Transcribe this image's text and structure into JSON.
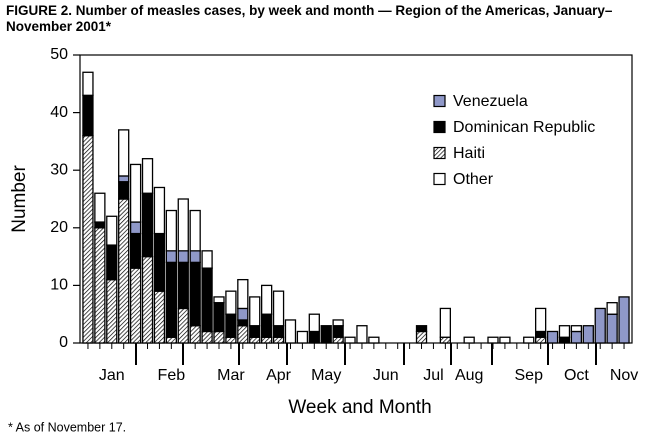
{
  "chart_data": {
    "type": "bar",
    "stacked": true,
    "title": "FIGURE 2. Number of measles cases, by week and month — Region of the Americas, January–November 2001*",
    "x_label": "Week and Month",
    "y_label": "Number",
    "footnote": "* As of November 17.",
    "categories": [
      null,
      null,
      "Jan",
      null,
      null,
      null,
      null,
      "Feb",
      null,
      null,
      null,
      null,
      "Mar",
      null,
      null,
      null,
      "Apr",
      null,
      null,
      null,
      "May",
      null,
      null,
      null,
      null,
      "Jun",
      null,
      null,
      null,
      "Jul",
      null,
      null,
      "Aug",
      null,
      null,
      null,
      null,
      "Sep",
      null,
      null,
      null,
      "Oct",
      null,
      null,
      null,
      "Nov"
    ],
    "ylim": [
      0,
      50
    ],
    "yticks": [
      0,
      10,
      20,
      30,
      40,
      50
    ],
    "legend": "upper right",
    "series": [
      {
        "name": "Venezuela",
        "color": "#8f98c8",
        "values": [
          0,
          0,
          0,
          1,
          2,
          0,
          0,
          2,
          2,
          2,
          0,
          0,
          0,
          2,
          0,
          0,
          0,
          0,
          0,
          0,
          0,
          0,
          0,
          0,
          0,
          0,
          0,
          0,
          0,
          0,
          0,
          0,
          0,
          0,
          0,
          0,
          0,
          0,
          0,
          2,
          0,
          2,
          3,
          6,
          5,
          8
        ]
      },
      {
        "name": "Dominican Republic",
        "color": "#000000",
        "values": [
          7,
          1,
          6,
          3,
          6,
          11,
          10,
          13,
          8,
          11,
          11,
          5,
          4,
          1,
          2,
          4,
          2,
          0,
          0,
          2,
          3,
          2,
          0,
          0,
          0,
          0,
          0,
          0,
          1,
          0,
          0,
          0,
          0,
          0,
          0,
          0,
          0,
          0,
          1,
          0,
          1,
          0,
          0,
          0,
          0,
          0
        ]
      },
      {
        "name": "Haiti",
        "color": "#000000",
        "pattern": "hatch",
        "values": [
          36,
          20,
          11,
          25,
          13,
          15,
          9,
          1,
          6,
          3,
          2,
          2,
          1,
          3,
          1,
          1,
          1,
          0,
          0,
          0,
          0,
          1,
          0,
          0,
          0,
          0,
          0,
          0,
          2,
          0,
          1,
          0,
          0,
          0,
          0,
          0,
          0,
          0,
          1,
          0,
          0,
          0,
          0,
          0,
          0,
          0
        ]
      },
      {
        "name": "Other",
        "color": "#ffffff",
        "values": [
          4,
          5,
          5,
          8,
          10,
          6,
          8,
          7,
          9,
          7,
          3,
          1,
          4,
          5,
          5,
          5,
          6,
          4,
          2,
          3,
          0,
          1,
          1,
          3,
          1,
          0,
          0,
          0,
          0,
          0,
          5,
          0,
          1,
          0,
          1,
          1,
          0,
          1,
          4,
          0,
          2,
          1,
          0,
          0,
          2,
          0
        ]
      }
    ]
  }
}
